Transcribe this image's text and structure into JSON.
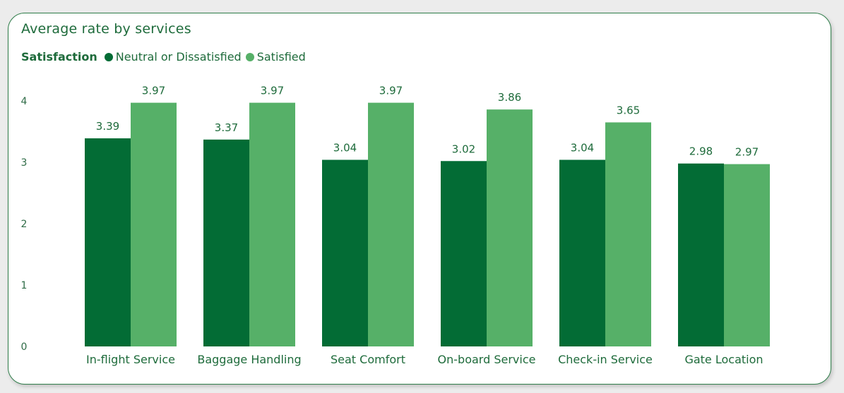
{
  "card": {
    "title": "Average rate by services"
  },
  "legend": {
    "title": "Satisfaction",
    "items": [
      {
        "label": "Neutral or Dissatisfied",
        "color": "#036c35"
      },
      {
        "label": "Satisfied",
        "color": "#56b068"
      }
    ]
  },
  "chart_data": {
    "type": "bar",
    "title": "Average rate by services",
    "categories": [
      "In-flight Service",
      "Baggage Handling",
      "Seat Comfort",
      "On-board Service",
      "Check-in Service",
      "Gate Location"
    ],
    "series": [
      {
        "name": "Neutral or Dissatisfied",
        "color": "#036c35",
        "values": [
          3.39,
          3.37,
          3.04,
          3.02,
          3.04,
          2.98
        ]
      },
      {
        "name": "Satisfied",
        "color": "#56b068",
        "values": [
          3.97,
          3.97,
          3.97,
          3.86,
          3.65,
          2.97
        ]
      }
    ],
    "y_ticks": [
      0,
      1,
      2,
      3,
      4
    ],
    "ylim": [
      0,
      4
    ],
    "xlabel": "",
    "ylabel": "",
    "grid": false,
    "legend_position": "top-left",
    "data_labels": true
  }
}
